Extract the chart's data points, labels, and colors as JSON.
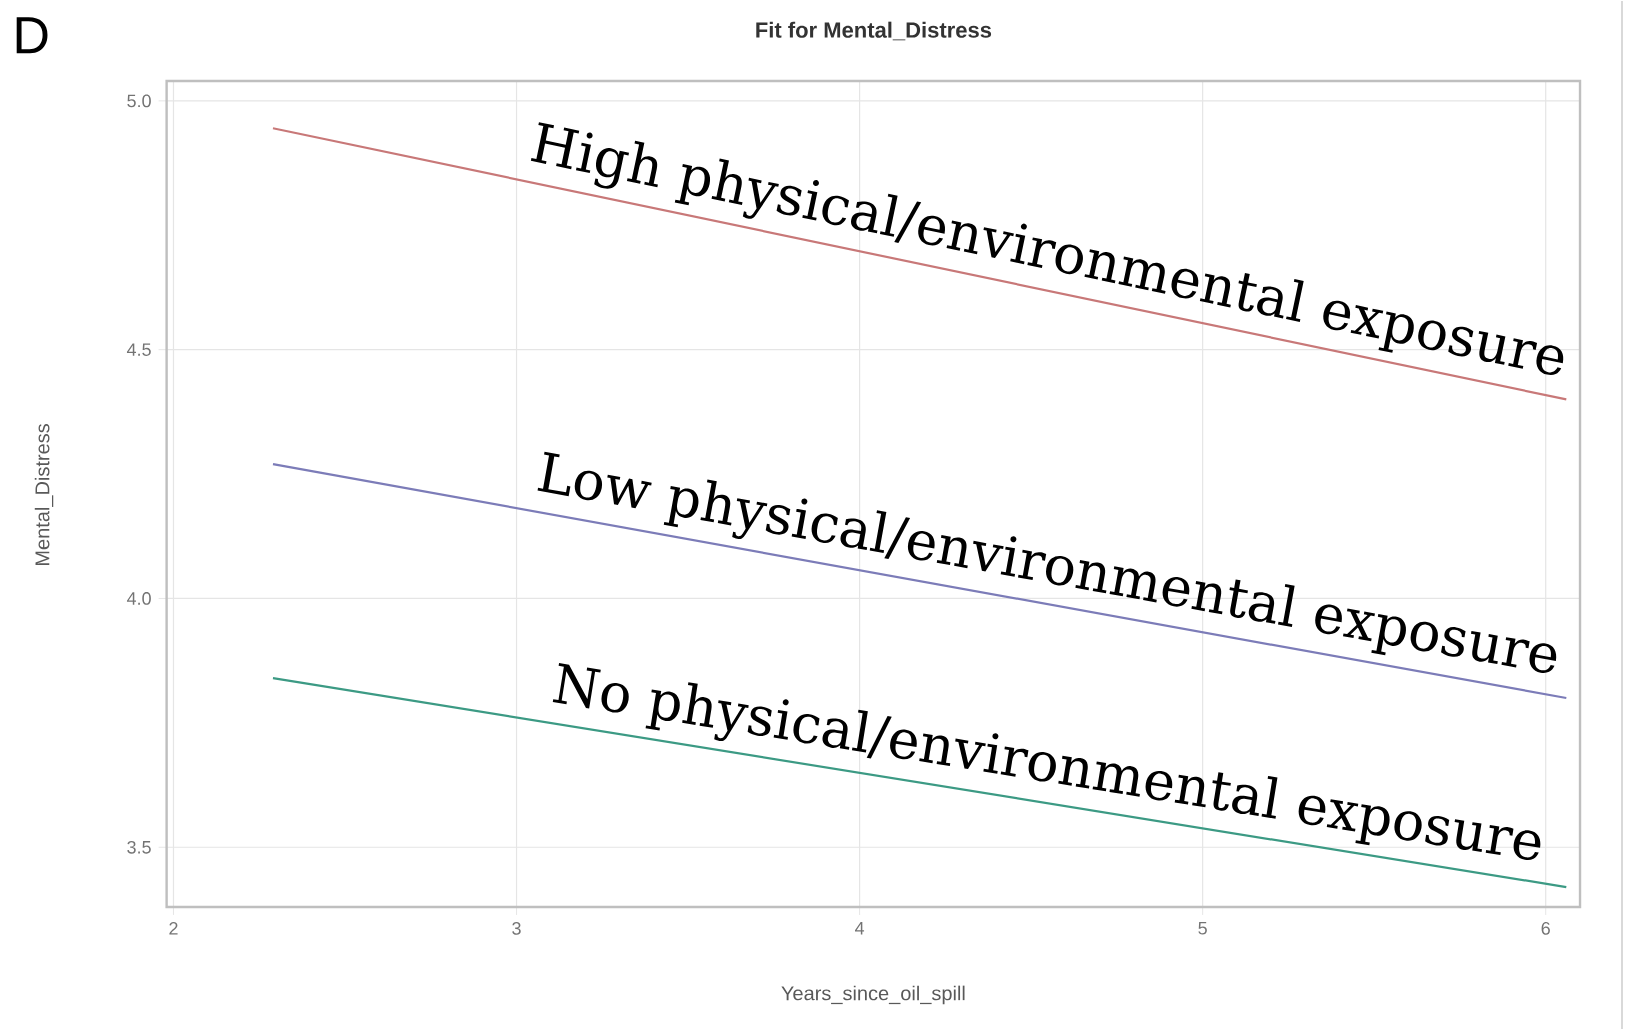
{
  "chart_data": {
    "type": "line",
    "title": "Fit for Mental_Distress",
    "xlabel": "Years_since_oil_spill",
    "ylabel": "Mental_Distress",
    "annotations": [
      "D"
    ],
    "x": [
      2.29,
      6.06
    ],
    "series": [
      {
        "name": "High physical/environmental exposure",
        "color": "#c87878",
        "values": [
          4.945,
          4.4
        ]
      },
      {
        "name": "Low physical/environmental exposure",
        "color": "#7c7cb8",
        "values": [
          4.27,
          3.8
        ]
      },
      {
        "name": "No physical/environmental exposure",
        "color": "#3c9a84",
        "values": [
          3.84,
          3.42
        ]
      }
    ],
    "xlim": [
      1.98,
      6.1
    ],
    "ylim": [
      3.38,
      5.04
    ],
    "xticks": [
      2,
      3,
      4,
      5,
      6
    ],
    "yticks": [
      3.5,
      {
        "value": 4,
        "label": "4.0"
      },
      4.5,
      {
        "value": 5,
        "label": "5.0"
      }
    ],
    "grid": true
  }
}
